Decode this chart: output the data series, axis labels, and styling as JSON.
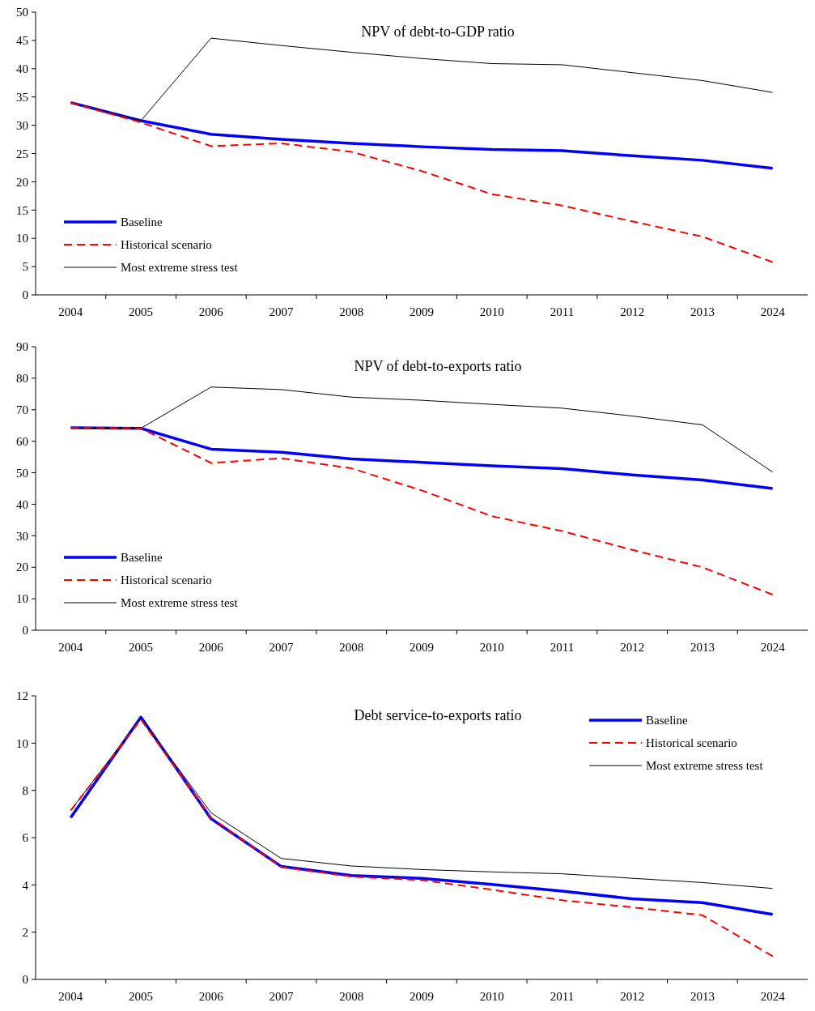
{
  "chart_data": [
    {
      "type": "line",
      "title": "NPV of debt-to-GDP ratio",
      "categories": [
        "2004",
        "2005",
        "2006",
        "2007",
        "2008",
        "2009",
        "2010",
        "2011",
        "2012",
        "2013",
        "2024"
      ],
      "ylim": [
        0,
        50
      ],
      "yticks": [
        0,
        5,
        10,
        15,
        20,
        25,
        30,
        35,
        40,
        45,
        50
      ],
      "legend": "bottom left",
      "grid": false,
      "series": [
        {
          "name": "Baseline",
          "color": "#0000ff",
          "line_style": "solid",
          "values": [
            34,
            30.8,
            28.4,
            27.5,
            26.8,
            26.2,
            25.7,
            25.5,
            24.6,
            23.8,
            22.4
          ]
        },
        {
          "name": "Historical scenario",
          "color": "#ff0000",
          "line_style": "dashed",
          "values": [
            34,
            30.5,
            26.3,
            26.8,
            25.3,
            21.9,
            17.8,
            15.8,
            13,
            10.3,
            5.8
          ]
        },
        {
          "name": "Most extreme stress test",
          "color": "#000000",
          "line_style": "solid",
          "values": [
            34,
            30.8,
            45.4,
            44.1,
            42.9,
            41.8,
            40.9,
            40.7,
            39.3,
            37.9,
            35.8
          ]
        }
      ]
    },
    {
      "type": "line",
      "title": "NPV of debt-to-exports ratio",
      "categories": [
        "2004",
        "2005",
        "2006",
        "2007",
        "2008",
        "2009",
        "2010",
        "2011",
        "2012",
        "2013",
        "2024"
      ],
      "ylim": [
        0,
        90
      ],
      "yticks": [
        0,
        10,
        20,
        30,
        40,
        50,
        60,
        70,
        80,
        90
      ],
      "legend": "bottom left",
      "grid": false,
      "series": [
        {
          "name": "Baseline",
          "color": "#0000ff",
          "line_style": "solid",
          "values": [
            64.3,
            64.1,
            57.5,
            56.5,
            54.4,
            53.3,
            52.2,
            51.3,
            49.3,
            47.7,
            45
          ]
        },
        {
          "name": "Historical scenario",
          "color": "#ff0000",
          "line_style": "dashed",
          "values": [
            64.3,
            64.1,
            53.1,
            54.6,
            51.4,
            44.4,
            36.2,
            31.5,
            25.5,
            20,
            11.3
          ]
        },
        {
          "name": "Most extreme stress test",
          "color": "#000000",
          "line_style": "solid",
          "values": [
            64.3,
            64.1,
            77.2,
            76.4,
            74,
            73,
            71.7,
            70.5,
            68,
            65.2,
            50.2
          ]
        }
      ]
    },
    {
      "type": "line",
      "title": "Debt service-to-exports ratio",
      "categories": [
        "2004",
        "2005",
        "2006",
        "2007",
        "2008",
        "2009",
        "2010",
        "2011",
        "2012",
        "2013",
        "2024"
      ],
      "ylim": [
        0,
        12
      ],
      "yticks": [
        0,
        2,
        4,
        6,
        8,
        10,
        12
      ],
      "legend": "top right",
      "grid": false,
      "series": [
        {
          "name": "Baseline",
          "color": "#0000ff",
          "line_style": "solid",
          "values": [
            6.85,
            11.1,
            6.8,
            4.78,
            4.4,
            4.28,
            4.02,
            3.74,
            3.41,
            3.25,
            2.75
          ]
        },
        {
          "name": "Historical scenario",
          "color": "#ff0000",
          "line_style": "dashed",
          "values": [
            7.15,
            11,
            6.85,
            4.75,
            4.35,
            4.2,
            3.8,
            3.35,
            3.05,
            2.72,
            0.98
          ]
        },
        {
          "name": "Most extreme stress test",
          "color": "#000000",
          "line_style": "solid",
          "values": [
            7.15,
            11.05,
            7.05,
            5.12,
            4.8,
            4.65,
            4.55,
            4.47,
            4.28,
            4.1,
            3.85
          ]
        }
      ]
    }
  ]
}
